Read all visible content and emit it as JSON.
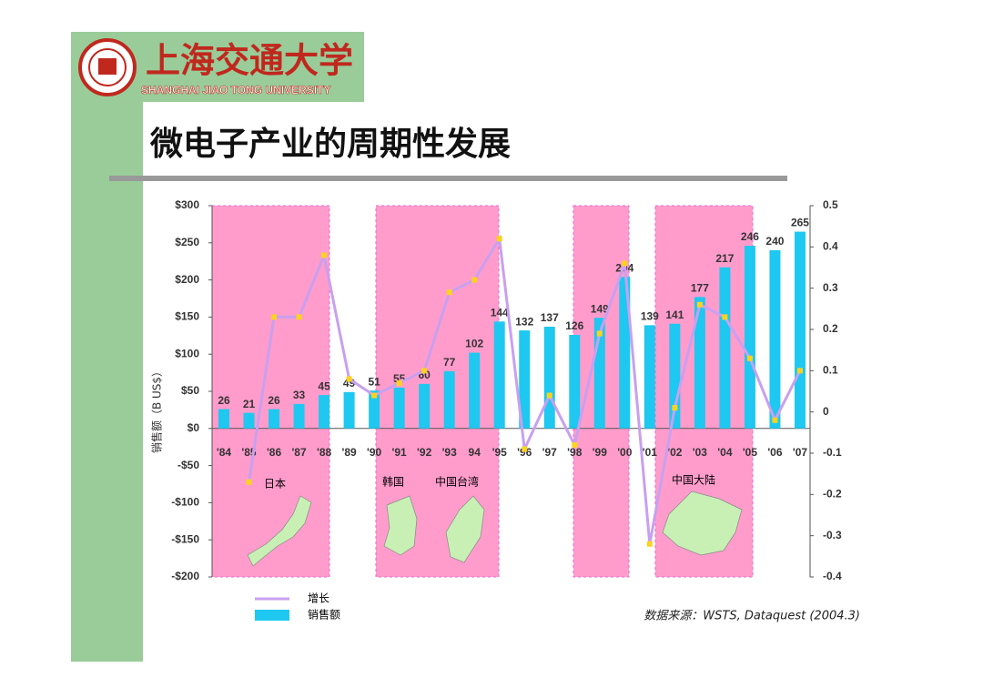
{
  "header": {
    "university": "上海交通大学",
    "university_en": "SHANGHAI JIAO TONG UNIVERSITY"
  },
  "slide_title": "微电子产业的周期性发展",
  "chart_data": {
    "type": "bar_line",
    "y_axis_label": "销售额（B US$）",
    "categories": [
      "'84",
      "'85",
      "'86",
      "'87",
      "'88",
      "'89",
      "'90",
      "'91",
      "'92",
      "'93",
      "94",
      "'95",
      "'96",
      "'97",
      "'98",
      "'99",
      "'00",
      "'01",
      "'02",
      "'03",
      "'04",
      "'05",
      "'06",
      "'07"
    ],
    "series": [
      {
        "name": "销售额",
        "type": "bar",
        "color": "#1ec8f0",
        "values": [
          26,
          21,
          26,
          33,
          45,
          49,
          51,
          55,
          60,
          77,
          102,
          144,
          132,
          137,
          126,
          149,
          204,
          139,
          141,
          177,
          217,
          246,
          240,
          265
        ]
      },
      {
        "name": "增长",
        "type": "line",
        "axis": "y2",
        "color": "#c8a0f0",
        "marker_color": "#ffd21e",
        "values": [
          null,
          -0.17,
          0.23,
          0.23,
          0.38,
          0.08,
          0.04,
          0.07,
          0.1,
          0.29,
          0.32,
          0.42,
          -0.09,
          0.04,
          -0.08,
          0.19,
          0.36,
          -0.32,
          0.01,
          0.26,
          0.23,
          0.13,
          -0.02,
          0.1
        ]
      }
    ],
    "ylim": [
      -200,
      300
    ],
    "yticks": [
      {
        "value": 300,
        "label": "$300"
      },
      {
        "value": 250,
        "label": "$250"
      },
      {
        "value": 200,
        "label": "$200"
      },
      {
        "value": 150,
        "label": "$150"
      },
      {
        "value": 100,
        "label": "$100"
      },
      {
        "value": 50,
        "label": "$50"
      },
      {
        "value": 0,
        "label": "$0"
      },
      {
        "value": -50,
        "label": "-$50"
      },
      {
        "value": -100,
        "label": "-$100"
      },
      {
        "value": -150,
        "label": "-$150"
      },
      {
        "value": -200,
        "label": "-$200"
      }
    ],
    "y2lim": [
      -0.4,
      0.5
    ],
    "y2ticks": [
      0.5,
      0.4,
      0.3,
      0.2,
      0.1,
      0,
      -0.1,
      -0.2,
      -0.3,
      -0.4
    ],
    "annotations": [
      "日本",
      "韩国",
      "中国台湾",
      "中国大陆"
    ],
    "source": "数据来源：WSTS, Dataquest (2004.3)"
  }
}
